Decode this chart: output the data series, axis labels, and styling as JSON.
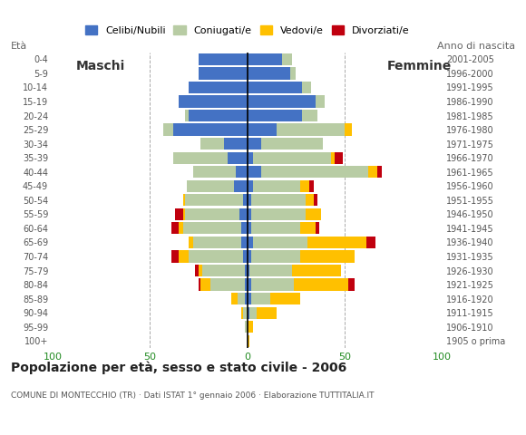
{
  "age_groups": [
    "100+",
    "95-99",
    "90-94",
    "85-89",
    "80-84",
    "75-79",
    "70-74",
    "65-69",
    "60-64",
    "55-59",
    "50-54",
    "45-49",
    "40-44",
    "35-39",
    "30-34",
    "25-29",
    "20-24",
    "15-19",
    "10-14",
    "5-9",
    "0-4"
  ],
  "birth_years": [
    "1905 o prima",
    "1906-1910",
    "1911-1915",
    "1916-1920",
    "1921-1925",
    "1926-1930",
    "1931-1935",
    "1936-1940",
    "1941-1945",
    "1946-1950",
    "1951-1955",
    "1956-1960",
    "1961-1965",
    "1966-1970",
    "1971-1975",
    "1976-1980",
    "1981-1985",
    "1986-1990",
    "1991-1995",
    "1996-2000",
    "2001-2005"
  ],
  "males": {
    "celibe": [
      0,
      0,
      0,
      1,
      1,
      1,
      2,
      3,
      3,
      4,
      2,
      7,
      6,
      10,
      12,
      38,
      30,
      35,
      30,
      25,
      25
    ],
    "coniugato": [
      0,
      1,
      2,
      4,
      18,
      22,
      28,
      25,
      30,
      28,
      30,
      24,
      22,
      28,
      12,
      5,
      2,
      0,
      0,
      0,
      0
    ],
    "vedovo": [
      0,
      0,
      1,
      3,
      5,
      2,
      5,
      2,
      2,
      1,
      1,
      0,
      0,
      0,
      0,
      0,
      0,
      0,
      0,
      0,
      0
    ],
    "divorziato": [
      0,
      0,
      0,
      0,
      1,
      2,
      4,
      0,
      4,
      4,
      0,
      0,
      0,
      0,
      0,
      0,
      0,
      0,
      0,
      0,
      0
    ]
  },
  "females": {
    "nubile": [
      0,
      0,
      1,
      2,
      2,
      1,
      2,
      3,
      2,
      2,
      2,
      3,
      7,
      3,
      7,
      15,
      28,
      35,
      28,
      22,
      18
    ],
    "coniugata": [
      0,
      0,
      4,
      10,
      22,
      22,
      25,
      28,
      25,
      28,
      28,
      24,
      55,
      40,
      32,
      35,
      8,
      5,
      5,
      3,
      5
    ],
    "vedova": [
      1,
      3,
      10,
      15,
      28,
      25,
      28,
      30,
      8,
      8,
      4,
      5,
      5,
      2,
      0,
      4,
      0,
      0,
      0,
      0,
      0
    ],
    "divorziata": [
      0,
      0,
      0,
      0,
      3,
      0,
      0,
      5,
      2,
      0,
      2,
      2,
      2,
      4,
      0,
      0,
      0,
      0,
      0,
      0,
      0
    ]
  },
  "colors": {
    "celibe": "#4472c4",
    "coniugato": "#b8cca4",
    "vedovo": "#ffc000",
    "divorziato": "#c0000e"
  },
  "title": "Popolazione per età, sesso e stato civile - 2006",
  "subtitle": "COMUNE DI MONTECCHIO (TR) · Dati ISTAT 1° gennaio 2006 · Elaborazione TUTTITALIA.IT",
  "legend_labels": [
    "Celibi/Nubili",
    "Coniugati/e",
    "Vedovi/e",
    "Divorziati/e"
  ],
  "ylabel_left": "Età",
  "ylabel_right": "Anno di nascita",
  "label_maschi": "Maschi",
  "label_femmine": "Femmine"
}
